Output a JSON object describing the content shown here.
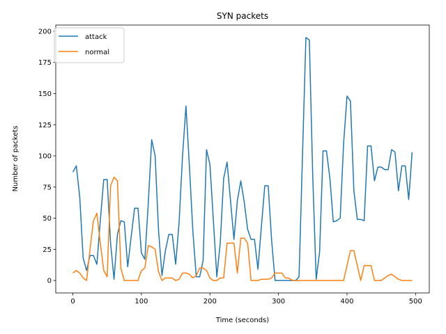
{
  "chart_data": {
    "type": "line",
    "title": "SYN packets",
    "xlabel": "Time (seconds)",
    "ylabel": "Number of packets",
    "xlim": [
      -25,
      520
    ],
    "ylim": [
      -10,
      205
    ],
    "xticks": [
      0,
      100,
      200,
      300,
      400,
      500
    ],
    "yticks": [
      0,
      25,
      50,
      75,
      100,
      125,
      150,
      175,
      200
    ],
    "grid": false,
    "legend_position": "top-left",
    "series": [
      {
        "name": "attack",
        "color": "#1f77b4",
        "x": [
          0,
          5,
          10,
          15,
          20,
          25,
          30,
          35,
          40,
          45,
          50,
          55,
          60,
          65,
          70,
          75,
          80,
          85,
          90,
          95,
          100,
          105,
          110,
          115,
          120,
          125,
          130,
          135,
          140,
          145,
          150,
          155,
          160,
          165,
          170,
          175,
          180,
          185,
          190,
          195,
          200,
          205,
          210,
          215,
          220,
          225,
          230,
          235,
          240,
          245,
          250,
          255,
          260,
          265,
          270,
          275,
          280,
          285,
          290,
          295,
          300,
          305,
          310,
          315,
          320,
          325,
          330,
          335,
          340,
          345,
          350,
          355,
          360,
          365,
          370,
          375,
          380,
          385,
          390,
          395,
          400,
          405,
          410,
          415,
          420,
          425,
          430,
          435,
          440,
          445,
          450,
          455,
          460,
          465,
          470,
          475,
          480,
          485,
          490,
          495
        ],
        "y": [
          87,
          92,
          67,
          18,
          8,
          20,
          20,
          13,
          48,
          81,
          81,
          30,
          1,
          37,
          48,
          47,
          11,
          35,
          58,
          58,
          22,
          17,
          62,
          113,
          100,
          40,
          4,
          24,
          37,
          37,
          13,
          47,
          100,
          140,
          92,
          40,
          3,
          3,
          16,
          105,
          93,
          48,
          3,
          30,
          82,
          95,
          64,
          33,
          64,
          80,
          63,
          41,
          33,
          33,
          9,
          43,
          76,
          76,
          32,
          0,
          0,
          0,
          0,
          0,
          0,
          0,
          3,
          100,
          195,
          193,
          83,
          1,
          23,
          104,
          104,
          82,
          47,
          48,
          50,
          110,
          148,
          144,
          72,
          49,
          49,
          48,
          108,
          108,
          80,
          91,
          91,
          89,
          89,
          105,
          103,
          72,
          92,
          92,
          65,
          103
        ]
      },
      {
        "name": "normal",
        "color": "#ff7f0e",
        "x": [
          0,
          5,
          10,
          15,
          20,
          25,
          30,
          35,
          40,
          45,
          50,
          55,
          60,
          65,
          70,
          75,
          80,
          85,
          90,
          95,
          100,
          105,
          110,
          115,
          120,
          125,
          130,
          135,
          140,
          145,
          150,
          155,
          160,
          165,
          170,
          175,
          180,
          185,
          190,
          195,
          200,
          205,
          210,
          215,
          220,
          225,
          230,
          235,
          240,
          245,
          250,
          255,
          260,
          265,
          270,
          275,
          280,
          285,
          290,
          295,
          300,
          305,
          310,
          315,
          320,
          325,
          330,
          335,
          340,
          345,
          350,
          355,
          360,
          365,
          370,
          375,
          380,
          385,
          390,
          395,
          400,
          405,
          410,
          415,
          420,
          425,
          430,
          435,
          440,
          445,
          450,
          455,
          460,
          465,
          470,
          475,
          480,
          485,
          490,
          495
        ],
        "y": [
          6,
          8,
          6,
          2,
          0,
          25,
          48,
          54,
          30,
          8,
          3,
          76,
          83,
          80,
          10,
          0,
          0,
          0,
          0,
          0,
          8,
          10,
          28,
          27,
          25,
          7,
          0,
          2,
          2,
          2,
          0,
          1,
          6,
          6,
          5,
          2,
          4,
          10,
          10,
          8,
          2,
          0,
          0,
          2,
          2,
          30,
          30,
          30,
          6,
          34,
          34,
          30,
          0,
          0,
          0,
          1,
          1,
          1,
          2,
          6,
          6,
          6,
          2,
          2,
          0,
          0,
          0,
          0,
          0,
          0,
          0,
          0,
          0,
          0,
          0,
          0,
          0,
          0,
          0,
          0,
          12,
          24,
          24,
          12,
          0,
          12,
          12,
          12,
          0,
          0,
          0,
          2,
          4,
          5,
          3,
          1,
          0,
          0,
          0,
          0
        ]
      }
    ]
  }
}
